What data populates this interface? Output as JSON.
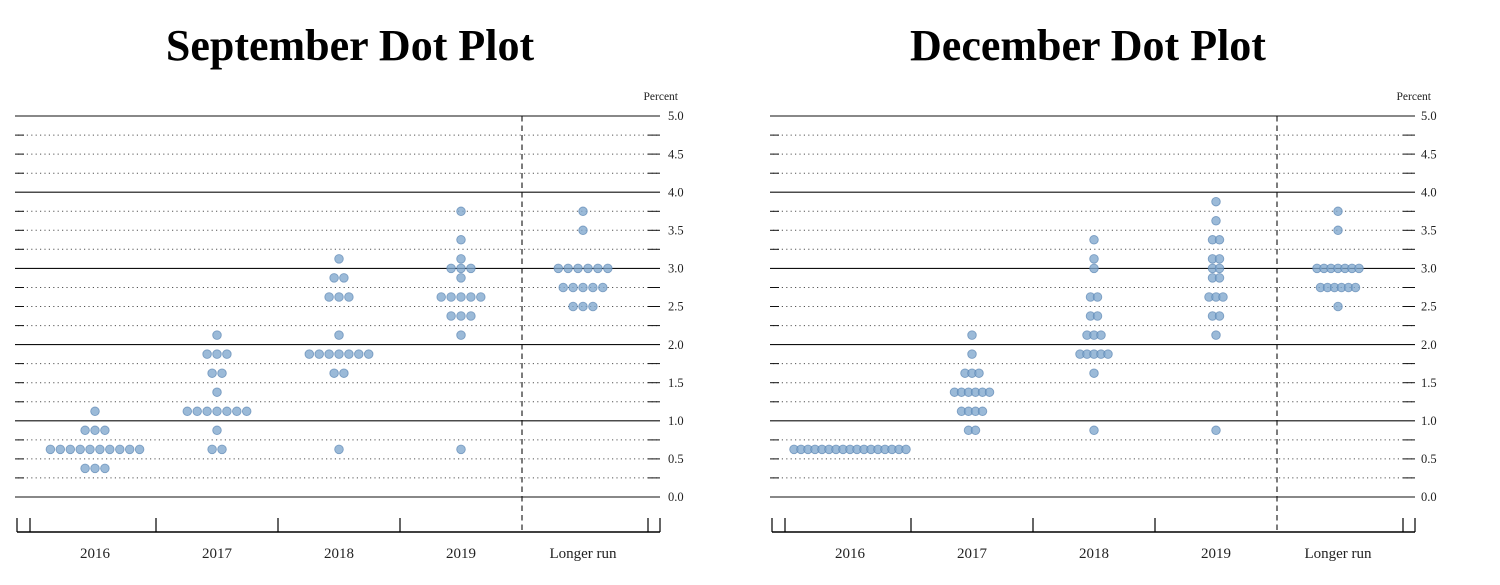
{
  "page": {
    "background_color": "#ffffff"
  },
  "style": {
    "dot_fill": "#7fa6cd",
    "dot_stroke": "#5a84b2",
    "dot_opacity": 0.78,
    "solid_grid_color": "#111111",
    "dotted_grid_color": "#555555",
    "axis_text_color": "#222222",
    "title_color": "#000000",
    "separator_color": "#111111"
  },
  "chart_data": [
    {
      "type": "scatter",
      "subtype": "fomc-dot-plot",
      "title": "September Dot Plot",
      "xlabel": "",
      "ylabel": "Percent",
      "ylim": [
        0.0,
        5.0
      ],
      "y_tick_step": 0.5,
      "gridline_step": 0.25,
      "grid": "dotted-quarters-solid-integers",
      "y_tick_labels": [
        "5.0",
        "4.5",
        "4.0",
        "3.5",
        "3.0",
        "2.5",
        "2.0",
        "1.5",
        "1.0",
        "0.5",
        "0.0"
      ],
      "categories": [
        "2016",
        "2017",
        "2018",
        "2019",
        "Longer run"
      ],
      "separator_before_category": "Longer run",
      "dots": [
        {
          "category": "2016",
          "points": [
            {
              "rate": 0.375,
              "count": 3
            },
            {
              "rate": 0.625,
              "count": 10
            },
            {
              "rate": 0.875,
              "count": 3
            },
            {
              "rate": 1.125,
              "count": 1
            }
          ]
        },
        {
          "category": "2017",
          "points": [
            {
              "rate": 0.625,
              "count": 2
            },
            {
              "rate": 0.875,
              "count": 1
            },
            {
              "rate": 1.125,
              "count": 7
            },
            {
              "rate": 1.375,
              "count": 1
            },
            {
              "rate": 1.625,
              "count": 2
            },
            {
              "rate": 1.875,
              "count": 3
            },
            {
              "rate": 2.125,
              "count": 1
            }
          ]
        },
        {
          "category": "2018",
          "points": [
            {
              "rate": 0.625,
              "count": 1
            },
            {
              "rate": 1.625,
              "count": 2
            },
            {
              "rate": 1.875,
              "count": 7
            },
            {
              "rate": 2.125,
              "count": 1
            },
            {
              "rate": 2.625,
              "count": 3
            },
            {
              "rate": 2.875,
              "count": 2
            },
            {
              "rate": 3.125,
              "count": 1
            }
          ]
        },
        {
          "category": "2019",
          "points": [
            {
              "rate": 0.625,
              "count": 1
            },
            {
              "rate": 2.125,
              "count": 1
            },
            {
              "rate": 2.375,
              "count": 3
            },
            {
              "rate": 2.625,
              "count": 5
            },
            {
              "rate": 2.875,
              "count": 1
            },
            {
              "rate": 3.0,
              "count": 3
            },
            {
              "rate": 3.125,
              "count": 1
            },
            {
              "rate": 3.375,
              "count": 1
            },
            {
              "rate": 3.75,
              "count": 1
            }
          ]
        },
        {
          "category": "Longer run",
          "points": [
            {
              "rate": 2.5,
              "count": 3
            },
            {
              "rate": 2.75,
              "count": 5
            },
            {
              "rate": 3.0,
              "count": 6
            },
            {
              "rate": 3.5,
              "count": 1
            },
            {
              "rate": 3.75,
              "count": 1
            }
          ]
        }
      ]
    },
    {
      "type": "scatter",
      "subtype": "fomc-dot-plot",
      "title": "December Dot Plot",
      "xlabel": "",
      "ylabel": "Percent",
      "ylim": [
        0.0,
        5.0
      ],
      "y_tick_step": 0.5,
      "gridline_step": 0.25,
      "grid": "dotted-quarters-solid-integers",
      "y_tick_labels": [
        "5.0",
        "4.5",
        "4.0",
        "3.5",
        "3.0",
        "2.5",
        "2.0",
        "1.5",
        "1.0",
        "0.5",
        "0.0"
      ],
      "categories": [
        "2016",
        "2017",
        "2018",
        "2019",
        "Longer run"
      ],
      "separator_before_category": "Longer run",
      "dots": [
        {
          "category": "2016",
          "points": [
            {
              "rate": 0.625,
              "count": 17
            }
          ]
        },
        {
          "category": "2017",
          "points": [
            {
              "rate": 0.875,
              "count": 2
            },
            {
              "rate": 1.125,
              "count": 4
            },
            {
              "rate": 1.375,
              "count": 6
            },
            {
              "rate": 1.625,
              "count": 3
            },
            {
              "rate": 1.875,
              "count": 1
            },
            {
              "rate": 2.125,
              "count": 1
            }
          ]
        },
        {
          "category": "2018",
          "points": [
            {
              "rate": 0.875,
              "count": 1
            },
            {
              "rate": 1.625,
              "count": 1
            },
            {
              "rate": 1.875,
              "count": 5
            },
            {
              "rate": 2.125,
              "count": 3
            },
            {
              "rate": 2.375,
              "count": 2
            },
            {
              "rate": 2.625,
              "count": 2
            },
            {
              "rate": 3.0,
              "count": 1
            },
            {
              "rate": 3.125,
              "count": 1
            },
            {
              "rate": 3.375,
              "count": 1
            }
          ]
        },
        {
          "category": "2019",
          "points": [
            {
              "rate": 0.875,
              "count": 1
            },
            {
              "rate": 2.125,
              "count": 1
            },
            {
              "rate": 2.375,
              "count": 2
            },
            {
              "rate": 2.625,
              "count": 3
            },
            {
              "rate": 2.875,
              "count": 2
            },
            {
              "rate": 3.0,
              "count": 2
            },
            {
              "rate": 3.125,
              "count": 2
            },
            {
              "rate": 3.375,
              "count": 2
            },
            {
              "rate": 3.625,
              "count": 1
            },
            {
              "rate": 3.875,
              "count": 1
            }
          ]
        },
        {
          "category": "Longer run",
          "points": [
            {
              "rate": 2.5,
              "count": 1
            },
            {
              "rate": 2.75,
              "count": 6
            },
            {
              "rate": 3.0,
              "count": 7
            },
            {
              "rate": 3.5,
              "count": 1
            },
            {
              "rate": 3.75,
              "count": 1
            }
          ]
        }
      ]
    }
  ]
}
